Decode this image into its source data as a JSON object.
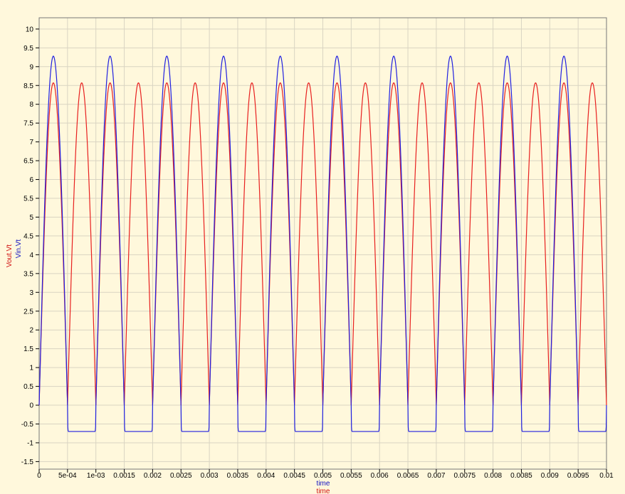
{
  "chart_data": {
    "type": "line",
    "xlabel": "time",
    "xlabel_secondary": "time",
    "ylabels": [
      "Vout.Vt",
      "Vin.Vt"
    ],
    "xlim": [
      0,
      0.01
    ],
    "ylim": [
      -1.7,
      10.3
    ],
    "grid": true,
    "background_color": "#fff8dc",
    "grid_color": "#d9d4c2",
    "x_ticks": [
      0,
      0.0005,
      0.001,
      0.0015,
      0.002,
      0.0025,
      0.003,
      0.0035,
      0.004,
      0.0045,
      0.005,
      0.0055,
      0.006,
      0.0065,
      0.007,
      0.0075,
      0.008,
      0.0085,
      0.009,
      0.0095,
      0.01
    ],
    "x_tick_labels": [
      "0",
      "5e-04",
      "1e-03",
      "0.0015",
      "0.002",
      "0.0025",
      "0.003",
      "0.0035",
      "0.004",
      "0.0045",
      "0.005",
      "0.0055",
      "0.006",
      "0.0065",
      "0.007",
      "0.0075",
      "0.008",
      "0.0085",
      "0.009",
      "0.0095",
      "0.01"
    ],
    "y_ticks": [
      -1.5,
      -1,
      -0.5,
      0,
      0.5,
      1,
      1.5,
      2,
      2.5,
      3,
      3.5,
      4,
      4.5,
      5,
      5.5,
      6,
      6.5,
      7,
      7.5,
      8,
      8.5,
      9,
      9.5,
      10
    ],
    "y_tick_labels": [
      "-1.5",
      "-1",
      "-0.5",
      "0",
      "0.5",
      "1",
      "1.5",
      "2",
      "2.5",
      "3",
      "3.5",
      "4",
      "4.5",
      "5",
      "5.5",
      "6",
      "6.5",
      "7",
      "7.5",
      "8",
      "8.5",
      "9",
      "9.5",
      "10"
    ],
    "series": [
      {
        "name": "Vout.Vt",
        "color": "#e8201f",
        "description_shape": "full-wave rectified sine",
        "frequency_hz": 1000,
        "peak": 8.57,
        "min": 0.0
      },
      {
        "name": "Vin.Vt",
        "color": "#2020e0",
        "description_shape": "sine clipped at negative level",
        "frequency_hz": 1000,
        "peak": 9.28,
        "negative_clip": -0.7
      }
    ]
  }
}
